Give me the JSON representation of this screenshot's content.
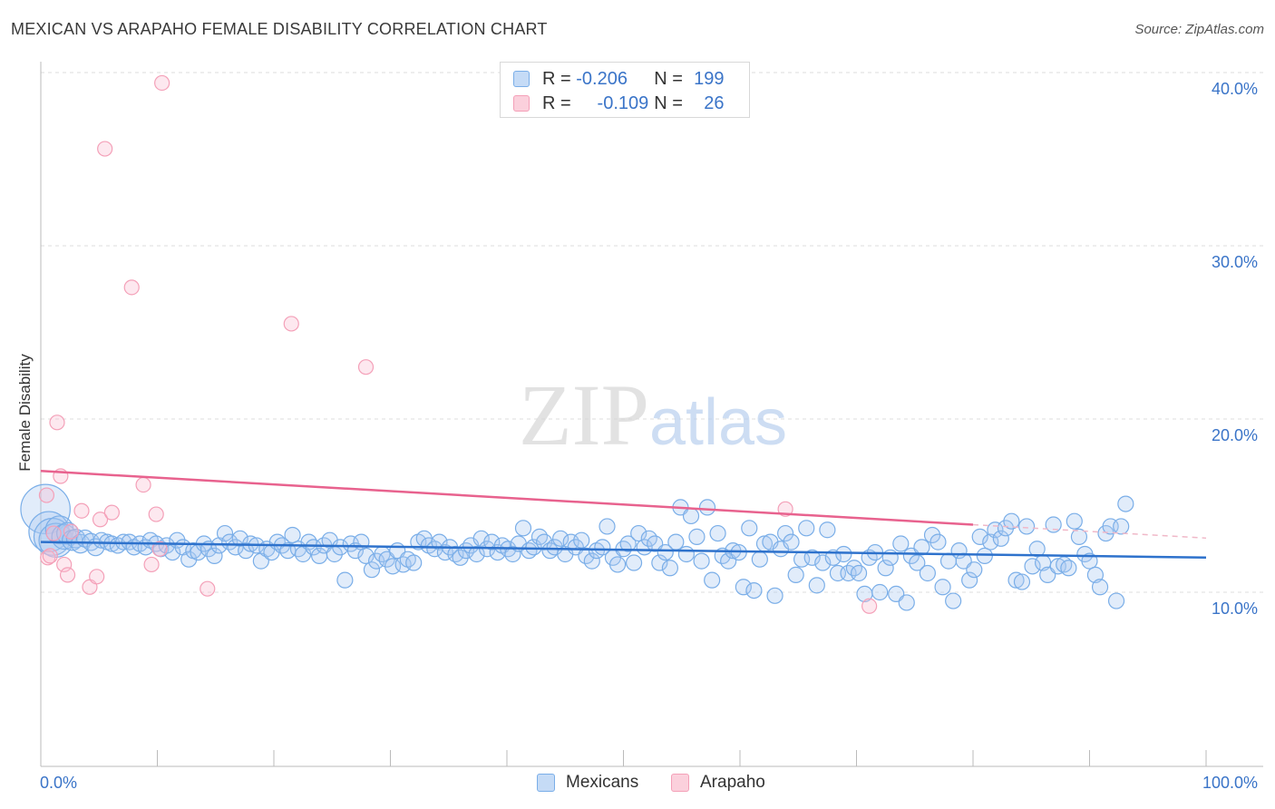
{
  "chart_data": {
    "type": "scatter",
    "title": "MEXICAN VS ARAPAHO FEMALE DISABILITY CORRELATION CHART",
    "source": "Source: ZipAtlas.com",
    "xlabel": "",
    "ylabel": "Female Disability",
    "xlim": [
      0,
      100
    ],
    "ylim": [
      0,
      40
    ],
    "x_tick_labels": [
      "0.0%",
      "100.0%"
    ],
    "y_tick_labels": [
      "10.0%",
      "20.0%",
      "30.0%",
      "40.0%"
    ],
    "y_ticks": [
      10,
      20,
      30,
      40
    ],
    "grid": true,
    "watermark": "ZIPatlas",
    "legend_stats": [
      {
        "r_label": "R =",
        "r_value": "-0.206",
        "n_label": "N =",
        "n_value": "199"
      },
      {
        "r_label": "R =",
        "r_value": "-0.109",
        "n_label": "N =",
        "n_value": "26"
      }
    ],
    "series": [
      {
        "name": "Mexicans",
        "color": "#7aaee8",
        "line_color": "#2e72cc",
        "trend": {
          "x": [
            0,
            100
          ],
          "y": [
            12.9,
            12.0
          ]
        },
        "points": [
          [
            0.4,
            14.8,
            3.2
          ],
          [
            0.7,
            13.5,
            2.6
          ],
          [
            1.0,
            13.2,
            2.4
          ],
          [
            1.3,
            13.0,
            2.2
          ],
          [
            1.6,
            13.6,
            1.8
          ],
          [
            2.0,
            13.2,
            1.6
          ],
          [
            2.3,
            13.4,
            1.4
          ],
          [
            2.7,
            13.0,
            1.3
          ],
          [
            3.0,
            13.1,
            1.2
          ],
          [
            3.4,
            12.8,
            1.2
          ],
          [
            3.8,
            13.1,
            1.1
          ],
          [
            4.3,
            12.9,
            1.1
          ],
          [
            4.7,
            12.6,
            1.1
          ],
          [
            5.2,
            13.0,
            1.0
          ],
          [
            5.7,
            12.9,
            1.0
          ],
          [
            6.1,
            12.8,
            1.0
          ],
          [
            6.6,
            12.7,
            1.0
          ],
          [
            7.1,
            12.9,
            1.0
          ],
          [
            7.6,
            12.9,
            1.0
          ],
          [
            8.0,
            12.6,
            1.0
          ],
          [
            8.5,
            12.8,
            1.0
          ],
          [
            9.0,
            12.6,
            1.0
          ],
          [
            9.4,
            13.0,
            1.0
          ],
          [
            9.9,
            12.8,
            1.0
          ],
          [
            10.3,
            12.5,
            1.0
          ],
          [
            10.8,
            12.7,
            1.0
          ],
          [
            11.3,
            12.3,
            1.0
          ],
          [
            11.7,
            13.0,
            1.0
          ],
          [
            12.2,
            12.6,
            1.0
          ],
          [
            12.7,
            11.9,
            1.0
          ],
          [
            13.1,
            12.4,
            1.0
          ],
          [
            13.5,
            12.3,
            1.0
          ],
          [
            14.0,
            12.8,
            1.0
          ],
          [
            14.4,
            12.5,
            1.0
          ],
          [
            14.9,
            12.1,
            1.0
          ],
          [
            15.3,
            12.7,
            1.0
          ],
          [
            15.8,
            13.4,
            1.0
          ],
          [
            16.2,
            12.9,
            1.0
          ],
          [
            16.7,
            12.6,
            1.0
          ],
          [
            17.1,
            13.1,
            1.0
          ],
          [
            17.6,
            12.4,
            1.0
          ],
          [
            18.0,
            12.8,
            1.0
          ],
          [
            18.5,
            12.7,
            1.0
          ],
          [
            18.9,
            11.8,
            1.0
          ],
          [
            19.4,
            12.5,
            1.0
          ],
          [
            19.8,
            12.3,
            1.0
          ],
          [
            20.3,
            12.9,
            1.0
          ],
          [
            20.7,
            12.7,
            1.0
          ],
          [
            21.2,
            12.4,
            1.0
          ],
          [
            21.6,
            13.3,
            1.0
          ],
          [
            22.1,
            12.5,
            1.0
          ],
          [
            22.5,
            12.2,
            1.0
          ],
          [
            23.0,
            12.9,
            1.0
          ],
          [
            23.4,
            12.6,
            1.0
          ],
          [
            23.9,
            12.1,
            1.0
          ],
          [
            24.3,
            12.7,
            1.0
          ],
          [
            24.8,
            13.0,
            1.0
          ],
          [
            25.2,
            12.2,
            1.0
          ],
          [
            25.7,
            12.6,
            1.0
          ],
          [
            26.1,
            10.7,
            1.0
          ],
          [
            26.6,
            12.8,
            1.0
          ],
          [
            27.0,
            12.4,
            1.0
          ],
          [
            27.5,
            12.9,
            1.0
          ],
          [
            27.9,
            12.1,
            1.0
          ],
          [
            28.4,
            11.3,
            1.0
          ],
          [
            28.8,
            11.8,
            1.0
          ],
          [
            29.3,
            12.2,
            1.0
          ],
          [
            29.7,
            11.9,
            1.0
          ],
          [
            30.2,
            11.5,
            1.0
          ],
          [
            30.6,
            12.4,
            1.0
          ],
          [
            31.1,
            11.6,
            1.0
          ],
          [
            31.5,
            11.9,
            1.0
          ],
          [
            32.0,
            11.7,
            1.0
          ],
          [
            32.4,
            12.9,
            1.0
          ],
          [
            32.9,
            13.1,
            1.0
          ],
          [
            33.3,
            12.7,
            1.0
          ],
          [
            33.8,
            12.5,
            1.0
          ],
          [
            34.2,
            12.9,
            1.0
          ],
          [
            34.7,
            12.3,
            1.0
          ],
          [
            35.1,
            12.6,
            1.0
          ],
          [
            35.6,
            12.2,
            1.0
          ],
          [
            36.0,
            12.0,
            1.0
          ],
          [
            36.5,
            12.4,
            1.0
          ],
          [
            36.9,
            12.7,
            1.0
          ],
          [
            37.4,
            12.2,
            1.0
          ],
          [
            37.8,
            13.1,
            1.0
          ],
          [
            38.3,
            12.5,
            1.0
          ],
          [
            38.7,
            12.9,
            1.0
          ],
          [
            39.2,
            12.3,
            1.0
          ],
          [
            39.6,
            12.7,
            1.0
          ],
          [
            40.1,
            12.5,
            1.0
          ],
          [
            40.5,
            12.2,
            1.0
          ],
          [
            41.0,
            12.8,
            1.0
          ],
          [
            41.4,
            13.7,
            1.0
          ],
          [
            41.9,
            12.4,
            1.0
          ],
          [
            42.3,
            12.6,
            1.0
          ],
          [
            42.8,
            13.2,
            1.0
          ],
          [
            43.2,
            12.9,
            1.0
          ],
          [
            43.7,
            12.4,
            1.0
          ],
          [
            44.1,
            12.6,
            1.0
          ],
          [
            44.6,
            13.1,
            1.0
          ],
          [
            45.0,
            12.2,
            1.0
          ],
          [
            45.5,
            12.9,
            1.0
          ],
          [
            45.9,
            12.6,
            1.0
          ],
          [
            46.4,
            13.0,
            1.0
          ],
          [
            46.8,
            12.1,
            1.0
          ],
          [
            47.3,
            11.8,
            1.0
          ],
          [
            47.7,
            12.4,
            1.0
          ],
          [
            48.2,
            12.6,
            1.0
          ],
          [
            48.6,
            13.8,
            1.0
          ],
          [
            49.1,
            12.0,
            1.0
          ],
          [
            49.5,
            11.6,
            1.0
          ],
          [
            50.0,
            12.5,
            1.0
          ],
          [
            50.4,
            12.8,
            1.0
          ],
          [
            50.9,
            11.7,
            1.0
          ],
          [
            51.3,
            13.4,
            1.0
          ],
          [
            51.8,
            12.6,
            1.0
          ],
          [
            52.2,
            13.1,
            1.0
          ],
          [
            52.7,
            12.8,
            1.0
          ],
          [
            53.1,
            11.7,
            1.0
          ],
          [
            53.6,
            12.3,
            1.0
          ],
          [
            54.0,
            11.4,
            1.0
          ],
          [
            54.5,
            12.9,
            1.0
          ],
          [
            54.9,
            14.9,
            1.0
          ],
          [
            55.4,
            12.2,
            1.0
          ],
          [
            55.8,
            14.4,
            1.0
          ],
          [
            56.3,
            13.2,
            1.0
          ],
          [
            56.7,
            11.8,
            1.0
          ],
          [
            57.2,
            14.9,
            1.0
          ],
          [
            57.6,
            10.7,
            1.0
          ],
          [
            58.1,
            13.4,
            1.0
          ],
          [
            58.5,
            12.1,
            1.0
          ],
          [
            59.0,
            11.8,
            1.0
          ],
          [
            59.4,
            12.4,
            1.0
          ],
          [
            59.9,
            12.3,
            1.0
          ],
          [
            60.3,
            10.3,
            1.0
          ],
          [
            60.8,
            13.7,
            1.0
          ],
          [
            61.2,
            10.1,
            1.0
          ],
          [
            61.7,
            11.9,
            1.0
          ],
          [
            62.1,
            12.8,
            1.0
          ],
          [
            62.6,
            12.9,
            1.0
          ],
          [
            63.0,
            9.8,
            1.0
          ],
          [
            63.5,
            12.5,
            1.0
          ],
          [
            63.9,
            13.4,
            1.0
          ],
          [
            64.4,
            12.9,
            1.0
          ],
          [
            64.8,
            11.0,
            1.0
          ],
          [
            65.3,
            11.9,
            1.0
          ],
          [
            65.7,
            13.7,
            1.0
          ],
          [
            66.2,
            12.0,
            1.0
          ],
          [
            66.6,
            10.4,
            1.0
          ],
          [
            67.1,
            11.7,
            1.0
          ],
          [
            67.5,
            13.6,
            1.0
          ],
          [
            68.0,
            12.0,
            1.0
          ],
          [
            68.4,
            11.1,
            1.0
          ],
          [
            68.9,
            12.2,
            1.0
          ],
          [
            69.3,
            11.1,
            1.0
          ],
          [
            69.8,
            11.4,
            1.0
          ],
          [
            70.2,
            11.1,
            1.0
          ],
          [
            70.7,
            9.9,
            1.0
          ],
          [
            71.1,
            12.0,
            1.0
          ],
          [
            71.6,
            12.3,
            1.0
          ],
          [
            72.0,
            10.0,
            1.0
          ],
          [
            72.5,
            11.4,
            1.0
          ],
          [
            72.9,
            12.0,
            1.0
          ],
          [
            73.4,
            9.9,
            1.0
          ],
          [
            73.8,
            12.8,
            1.0
          ],
          [
            74.3,
            9.4,
            1.0
          ],
          [
            74.7,
            12.1,
            1.0
          ],
          [
            75.2,
            11.7,
            1.0
          ],
          [
            75.6,
            12.6,
            1.0
          ],
          [
            76.1,
            11.1,
            1.0
          ],
          [
            76.5,
            13.3,
            1.0
          ],
          [
            77.0,
            12.9,
            1.0
          ],
          [
            77.4,
            10.3,
            1.0
          ],
          [
            77.9,
            11.8,
            1.0
          ],
          [
            78.3,
            9.5,
            1.0
          ],
          [
            78.8,
            12.4,
            1.0
          ],
          [
            79.2,
            11.8,
            1.0
          ],
          [
            79.7,
            10.7,
            1.0
          ],
          [
            80.1,
            11.3,
            1.0
          ],
          [
            80.6,
            13.2,
            1.0
          ],
          [
            81.0,
            12.1,
            1.0
          ],
          [
            81.5,
            12.9,
            1.0
          ],
          [
            81.9,
            13.6,
            1.0
          ],
          [
            82.4,
            13.1,
            1.0
          ],
          [
            82.8,
            13.7,
            1.0
          ],
          [
            83.3,
            14.1,
            1.0
          ],
          [
            83.7,
            10.7,
            1.0
          ],
          [
            84.2,
            10.6,
            1.0
          ],
          [
            84.6,
            13.8,
            1.0
          ],
          [
            85.1,
            11.5,
            1.0
          ],
          [
            85.5,
            12.5,
            1.0
          ],
          [
            86.0,
            11.7,
            1.0
          ],
          [
            86.4,
            11.0,
            1.0
          ],
          [
            86.9,
            13.9,
            1.0
          ],
          [
            87.3,
            11.5,
            1.0
          ],
          [
            87.8,
            11.6,
            1.0
          ],
          [
            88.2,
            11.4,
            1.0
          ],
          [
            88.7,
            14.1,
            1.0
          ],
          [
            89.1,
            13.2,
            1.0
          ],
          [
            89.6,
            12.2,
            1.0
          ],
          [
            90.0,
            11.8,
            1.0
          ],
          [
            90.5,
            11.0,
            1.0
          ],
          [
            90.9,
            10.3,
            1.0
          ],
          [
            91.4,
            13.4,
            1.0
          ],
          [
            91.8,
            13.8,
            1.0
          ],
          [
            92.3,
            9.5,
            1.0
          ],
          [
            92.7,
            13.8,
            1.0
          ],
          [
            93.1,
            15.1,
            1.0
          ]
        ]
      },
      {
        "name": "Arapaho",
        "color": "#f4a0b8",
        "line_color": "#e8628e",
        "trend": {
          "x": [
            0,
            80
          ],
          "y": [
            17.0,
            13.9
          ]
        },
        "points": [
          [
            0.5,
            15.6
          ],
          [
            0.6,
            12.0
          ],
          [
            0.8,
            12.1
          ],
          [
            1.1,
            13.4
          ],
          [
            1.4,
            19.8
          ],
          [
            1.7,
            16.7
          ],
          [
            2.0,
            11.6
          ],
          [
            2.3,
            11.0
          ],
          [
            2.6,
            13.5
          ],
          [
            3.5,
            14.7
          ],
          [
            4.2,
            10.3
          ],
          [
            4.8,
            10.9
          ],
          [
            5.1,
            14.2
          ],
          [
            5.5,
            35.6
          ],
          [
            6.1,
            14.6
          ],
          [
            7.8,
            27.6
          ],
          [
            8.8,
            16.2
          ],
          [
            9.5,
            11.6
          ],
          [
            9.9,
            14.5
          ],
          [
            10.2,
            12.5
          ],
          [
            10.4,
            39.4
          ],
          [
            14.3,
            10.2
          ],
          [
            21.5,
            25.5
          ],
          [
            27.9,
            23.0
          ],
          [
            63.9,
            14.8
          ],
          [
            71.1,
            9.2
          ]
        ]
      }
    ],
    "legend_bottom": [
      "Mexicans",
      "Arapaho"
    ]
  }
}
